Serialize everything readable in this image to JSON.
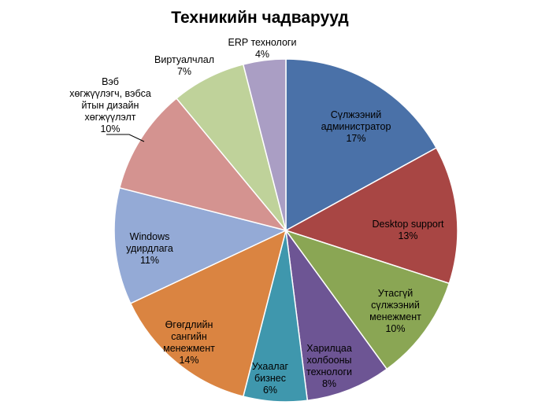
{
  "chart_data": {
    "type": "pie",
    "title": "Техникийн чадварууд",
    "slices": [
      {
        "lines": [
          "Сүлжээний",
          "администратор",
          "17%"
        ],
        "value": 17,
        "color": "#4A71A8"
      },
      {
        "lines": [
          "Desktop support",
          "13%"
        ],
        "value": 13,
        "color": "#A84644"
      },
      {
        "lines": [
          "Утасгүй",
          "сүлжээний",
          "менежмент",
          "10%"
        ],
        "value": 10,
        "color": "#8AA654"
      },
      {
        "lines": [
          "Харилцаа",
          "холбооны",
          "технологи",
          "8%"
        ],
        "value": 8,
        "color": "#6D5594"
      },
      {
        "lines": [
          "Ухаалаг",
          "бизнес",
          "6%"
        ],
        "value": 6,
        "color": "#3F97AD"
      },
      {
        "lines": [
          "Өгөгдлийн",
          "сангийн",
          "менежмент",
          "14%"
        ],
        "value": 14,
        "color": "#DA8441"
      },
      {
        "lines": [
          "Windows",
          "удирдлага",
          "11%"
        ],
        "value": 11,
        "color": "#94AAD6"
      },
      {
        "lines": [
          "Вэб",
          "хөгжүүлэгч, вэбса",
          "йтын дизайн",
          "хөгжүүлэлт",
          "10%"
        ],
        "value": 10,
        "color": "#D49390"
      },
      {
        "lines": [
          "Виртуалчлал",
          "7%"
        ],
        "value": 7,
        "color": "#BFD29A"
      },
      {
        "lines": [
          "ERP технологи",
          "4%"
        ],
        "value": 4,
        "color": "#AA9EC4"
      }
    ]
  }
}
